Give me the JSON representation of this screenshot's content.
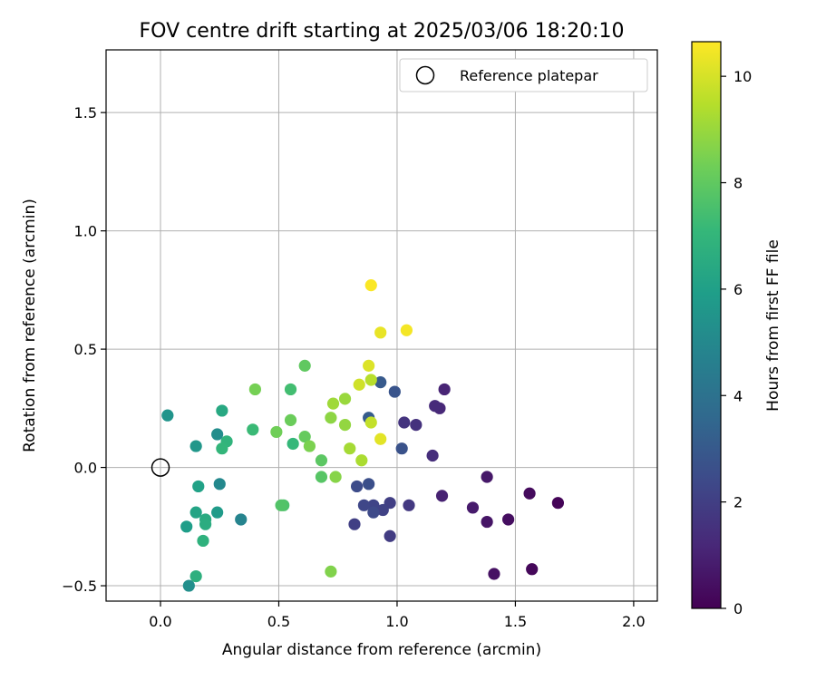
{
  "chart_data": {
    "type": "scatter",
    "title": "FOV centre drift starting at 2025/03/06 18:20:10",
    "xlabel": "Angular distance from reference (arcmin)",
    "ylabel": "Rotation from reference (arcmin)",
    "xlim": [
      -0.23,
      2.1
    ],
    "ylim": [
      -0.565,
      1.765
    ],
    "xticks": [
      "0.0",
      "0.5",
      "1.0",
      "1.5",
      "2.0"
    ],
    "xtick_values": [
      0,
      0.5,
      1.0,
      1.5,
      2.0
    ],
    "yticks": [
      "−0.5",
      "0.0",
      "0.5",
      "1.0",
      "1.5"
    ],
    "ytick_values": [
      -0.5,
      0,
      0.5,
      1.0,
      1.5
    ],
    "grid": true,
    "legend": {
      "position": "top-right",
      "entries": [
        {
          "label": "Reference platepar",
          "marker": "open-circle"
        }
      ]
    },
    "reference_point": {
      "x": 0.0,
      "y": 0.0
    },
    "colorbar": {
      "label": "Hours from first FF file",
      "colormap": "viridis",
      "range": [
        0,
        10.65
      ],
      "ticks": [
        "0",
        "2",
        "4",
        "6",
        "8",
        "10"
      ],
      "tick_values": [
        0,
        2,
        4,
        6,
        8,
        10
      ]
    },
    "colormap_stops": [
      "#440154",
      "#482878",
      "#3e4989",
      "#31688e",
      "#26828e",
      "#1f9e89",
      "#35b779",
      "#6ece58",
      "#b5de2b",
      "#fde725"
    ],
    "points": [
      {
        "x": 1.68,
        "y": -0.15,
        "c": 0.1
      },
      {
        "x": 1.57,
        "y": -0.43,
        "c": 0.2
      },
      {
        "x": 1.56,
        "y": -0.11,
        "c": 0.3
      },
      {
        "x": 1.47,
        "y": -0.22,
        "c": 0.4
      },
      {
        "x": 1.41,
        "y": -0.45,
        "c": 0.5
      },
      {
        "x": 1.38,
        "y": -0.23,
        "c": 0.6
      },
      {
        "x": 1.38,
        "y": -0.04,
        "c": 0.7
      },
      {
        "x": 1.32,
        "y": -0.17,
        "c": 0.8
      },
      {
        "x": 1.19,
        "y": -0.12,
        "c": 1.0
      },
      {
        "x": 1.2,
        "y": 0.33,
        "c": 1.1
      },
      {
        "x": 1.18,
        "y": 0.25,
        "c": 1.2
      },
      {
        "x": 1.16,
        "y": 0.26,
        "c": 1.3
      },
      {
        "x": 1.15,
        "y": 0.05,
        "c": 1.4
      },
      {
        "x": 1.08,
        "y": 0.18,
        "c": 1.5
      },
      {
        "x": 1.03,
        "y": 0.19,
        "c": 1.6
      },
      {
        "x": 1.05,
        "y": -0.16,
        "c": 1.8
      },
      {
        "x": 0.97,
        "y": -0.29,
        "c": 1.9
      },
      {
        "x": 0.97,
        "y": -0.15,
        "c": 2.0
      },
      {
        "x": 0.82,
        "y": -0.24,
        "c": 2.0
      },
      {
        "x": 0.94,
        "y": -0.18,
        "c": 2.1
      },
      {
        "x": 0.9,
        "y": -0.16,
        "c": 2.2
      },
      {
        "x": 0.86,
        "y": -0.16,
        "c": 2.3
      },
      {
        "x": 0.9,
        "y": -0.19,
        "c": 2.4
      },
      {
        "x": 0.83,
        "y": -0.08,
        "c": 2.5
      },
      {
        "x": 0.88,
        "y": -0.07,
        "c": 2.6
      },
      {
        "x": 1.02,
        "y": 0.08,
        "c": 2.7
      },
      {
        "x": 0.99,
        "y": 0.32,
        "c": 2.8
      },
      {
        "x": 0.93,
        "y": 0.36,
        "c": 3.0
      },
      {
        "x": 0.88,
        "y": 0.21,
        "c": 3.1
      },
      {
        "x": 0.34,
        "y": -0.22,
        "c": 4.8
      },
      {
        "x": 0.25,
        "y": -0.07,
        "c": 5.0
      },
      {
        "x": 0.24,
        "y": 0.14,
        "c": 5.2
      },
      {
        "x": 0.12,
        "y": -0.5,
        "c": 5.3
      },
      {
        "x": 0.03,
        "y": 0.22,
        "c": 5.5
      },
      {
        "x": 0.15,
        "y": 0.09,
        "c": 5.6
      },
      {
        "x": 0.24,
        "y": -0.19,
        "c": 5.8
      },
      {
        "x": 0.11,
        "y": -0.25,
        "c": 5.9
      },
      {
        "x": 0.16,
        "y": -0.08,
        "c": 6.1
      },
      {
        "x": 0.15,
        "y": -0.19,
        "c": 6.2
      },
      {
        "x": 0.26,
        "y": 0.24,
        "c": 6.4
      },
      {
        "x": 0.19,
        "y": -0.22,
        "c": 6.5
      },
      {
        "x": 0.19,
        "y": -0.24,
        "c": 6.6
      },
      {
        "x": 0.15,
        "y": -0.46,
        "c": 6.7
      },
      {
        "x": 0.18,
        "y": -0.31,
        "c": 6.8
      },
      {
        "x": 0.28,
        "y": 0.11,
        "c": 6.9
      },
      {
        "x": 0.26,
        "y": 0.08,
        "c": 7.0
      },
      {
        "x": 0.56,
        "y": 0.1,
        "c": 7.1
      },
      {
        "x": 0.39,
        "y": 0.16,
        "c": 7.2
      },
      {
        "x": 0.55,
        "y": 0.33,
        "c": 7.4
      },
      {
        "x": 0.52,
        "y": -0.16,
        "c": 7.6
      },
      {
        "x": 0.51,
        "y": -0.16,
        "c": 7.7
      },
      {
        "x": 0.68,
        "y": -0.04,
        "c": 7.8
      },
      {
        "x": 0.68,
        "y": 0.03,
        "c": 7.9
      },
      {
        "x": 0.61,
        "y": 0.43,
        "c": 8.0
      },
      {
        "x": 0.61,
        "y": 0.13,
        "c": 8.1
      },
      {
        "x": 0.55,
        "y": 0.2,
        "c": 8.2
      },
      {
        "x": 0.49,
        "y": 0.15,
        "c": 8.3
      },
      {
        "x": 0.4,
        "y": 0.33,
        "c": 8.4
      },
      {
        "x": 0.63,
        "y": 0.09,
        "c": 8.5
      },
      {
        "x": 0.72,
        "y": -0.44,
        "c": 8.6
      },
      {
        "x": 0.74,
        "y": -0.04,
        "c": 8.7
      },
      {
        "x": 0.72,
        "y": 0.21,
        "c": 8.8
      },
      {
        "x": 0.78,
        "y": 0.18,
        "c": 8.9
      },
      {
        "x": 0.78,
        "y": 0.29,
        "c": 9.0
      },
      {
        "x": 0.73,
        "y": 0.27,
        "c": 9.1
      },
      {
        "x": 0.8,
        "y": 0.08,
        "c": 9.2
      },
      {
        "x": 0.85,
        "y": 0.03,
        "c": 9.3
      },
      {
        "x": 0.89,
        "y": 0.37,
        "c": 9.5
      },
      {
        "x": 0.89,
        "y": 0.19,
        "c": 9.7
      },
      {
        "x": 0.84,
        "y": 0.35,
        "c": 9.9
      },
      {
        "x": 0.88,
        "y": 0.43,
        "c": 10.1
      },
      {
        "x": 0.93,
        "y": 0.12,
        "c": 10.2
      },
      {
        "x": 0.93,
        "y": 0.57,
        "c": 10.3
      },
      {
        "x": 1.04,
        "y": 0.58,
        "c": 10.5
      },
      {
        "x": 0.89,
        "y": 0.77,
        "c": 10.6
      }
    ]
  }
}
